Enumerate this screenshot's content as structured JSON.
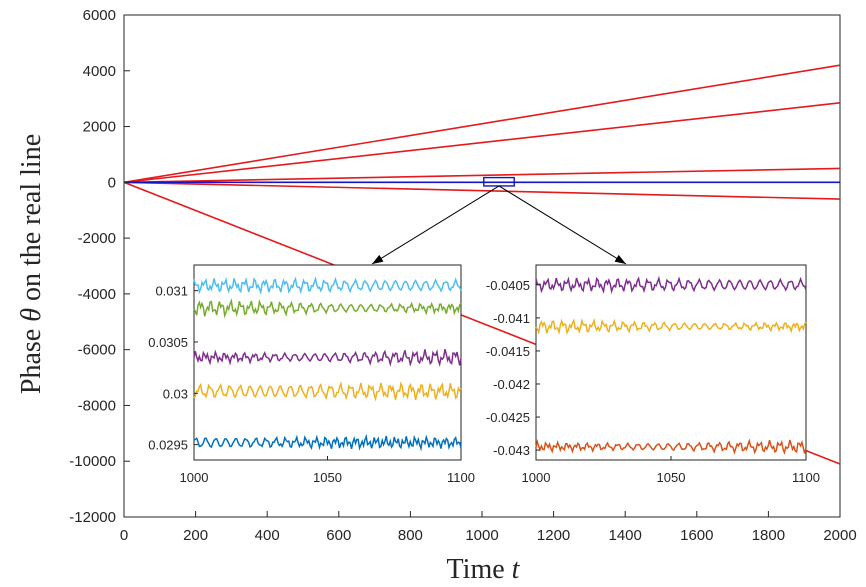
{
  "chart_data": [
    {
      "type": "line",
      "xlabel": "Time",
      "xlabel_symbol": "t",
      "ylabel_prefix": "Phase",
      "ylabel_symbol": "θ",
      "ylabel_suffix": "on the real line",
      "xlim": [
        0,
        2000
      ],
      "ylim": [
        -12000,
        6000
      ],
      "xticks": [
        "0",
        "200",
        "400",
        "600",
        "800",
        "1000",
        "1200",
        "1400",
        "1600",
        "1800",
        "2000"
      ],
      "yticks": [
        "6000",
        "4000",
        "2000",
        "0",
        "-2000",
        "-4000",
        "-6000",
        "-8000",
        "-10000",
        "-12000"
      ],
      "series": [
        {
          "name": "red line 1",
          "color": "#e41a1c",
          "x": [
            0,
            2000
          ],
          "y": [
            0,
            4200
          ]
        },
        {
          "name": "red line 2",
          "color": "#e41a1c",
          "x": [
            0,
            2000
          ],
          "y": [
            0,
            2850
          ]
        },
        {
          "name": "red line 3",
          "color": "#e41a1c",
          "x": [
            0,
            2000
          ],
          "y": [
            0,
            500
          ]
        },
        {
          "name": "red line 4",
          "color": "#e41a1c",
          "x": [
            0,
            2000
          ],
          "y": [
            0,
            -600
          ]
        },
        {
          "name": "red line 5",
          "color": "#e41a1c",
          "x": [
            0,
            2000
          ],
          "y": [
            0,
            -10100
          ]
        },
        {
          "name": "blue cluster",
          "color": "#1414c8",
          "x": [
            0,
            2000
          ],
          "y": [
            0,
            0
          ]
        }
      ],
      "zoom_box": {
        "x": [
          1005,
          1090
        ],
        "y": [
          -130,
          170
        ],
        "color": "#1414c8"
      }
    },
    {
      "type": "line",
      "name": "inset-left",
      "xlim": [
        1000,
        1100
      ],
      "ylim": [
        0.02935,
        0.03125
      ],
      "xticks": [
        "1000",
        "1050",
        "1100"
      ],
      "yticks": [
        "0.031",
        "0.0305",
        "0.03",
        "0.0295"
      ],
      "ytick_values": [
        0.031,
        0.0305,
        0.03,
        0.0295
      ],
      "series": [
        {
          "name": "cyan",
          "color": "#4DBEEE",
          "mean": 0.03105,
          "amp": 6e-05
        },
        {
          "name": "green",
          "color": "#77AC30",
          "mean": 0.03083,
          "amp": 7e-05
        },
        {
          "name": "purple",
          "color": "#7E2F8E",
          "mean": 0.03035,
          "amp": 7e-05
        },
        {
          "name": "yellow",
          "color": "#EDB120",
          "mean": 0.03002,
          "amp": 7e-05
        },
        {
          "name": "blue",
          "color": "#0072BD",
          "mean": 0.02952,
          "amp": 7e-05
        }
      ]
    },
    {
      "type": "line",
      "name": "inset-right",
      "xlim": [
        1000,
        1100
      ],
      "ylim": [
        -0.04315,
        -0.0402
      ],
      "xticks": [
        "1000",
        "1050",
        "1100"
      ],
      "yticks": [
        "-0.0405",
        "-0.041",
        "-0.0415",
        "-0.042",
        "-0.0425",
        "-0.043"
      ],
      "ytick_values": [
        -0.0405,
        -0.041,
        -0.0415,
        -0.042,
        -0.0425,
        -0.043
      ],
      "series": [
        {
          "name": "purple",
          "color": "#7E2F8E",
          "mean": -0.0405,
          "amp": 9e-05
        },
        {
          "name": "yellow",
          "color": "#EDB120",
          "mean": -0.04113,
          "amp": 9e-05
        },
        {
          "name": "orange",
          "color": "#D95319",
          "mean": -0.04295,
          "amp": 9e-05
        }
      ]
    }
  ]
}
